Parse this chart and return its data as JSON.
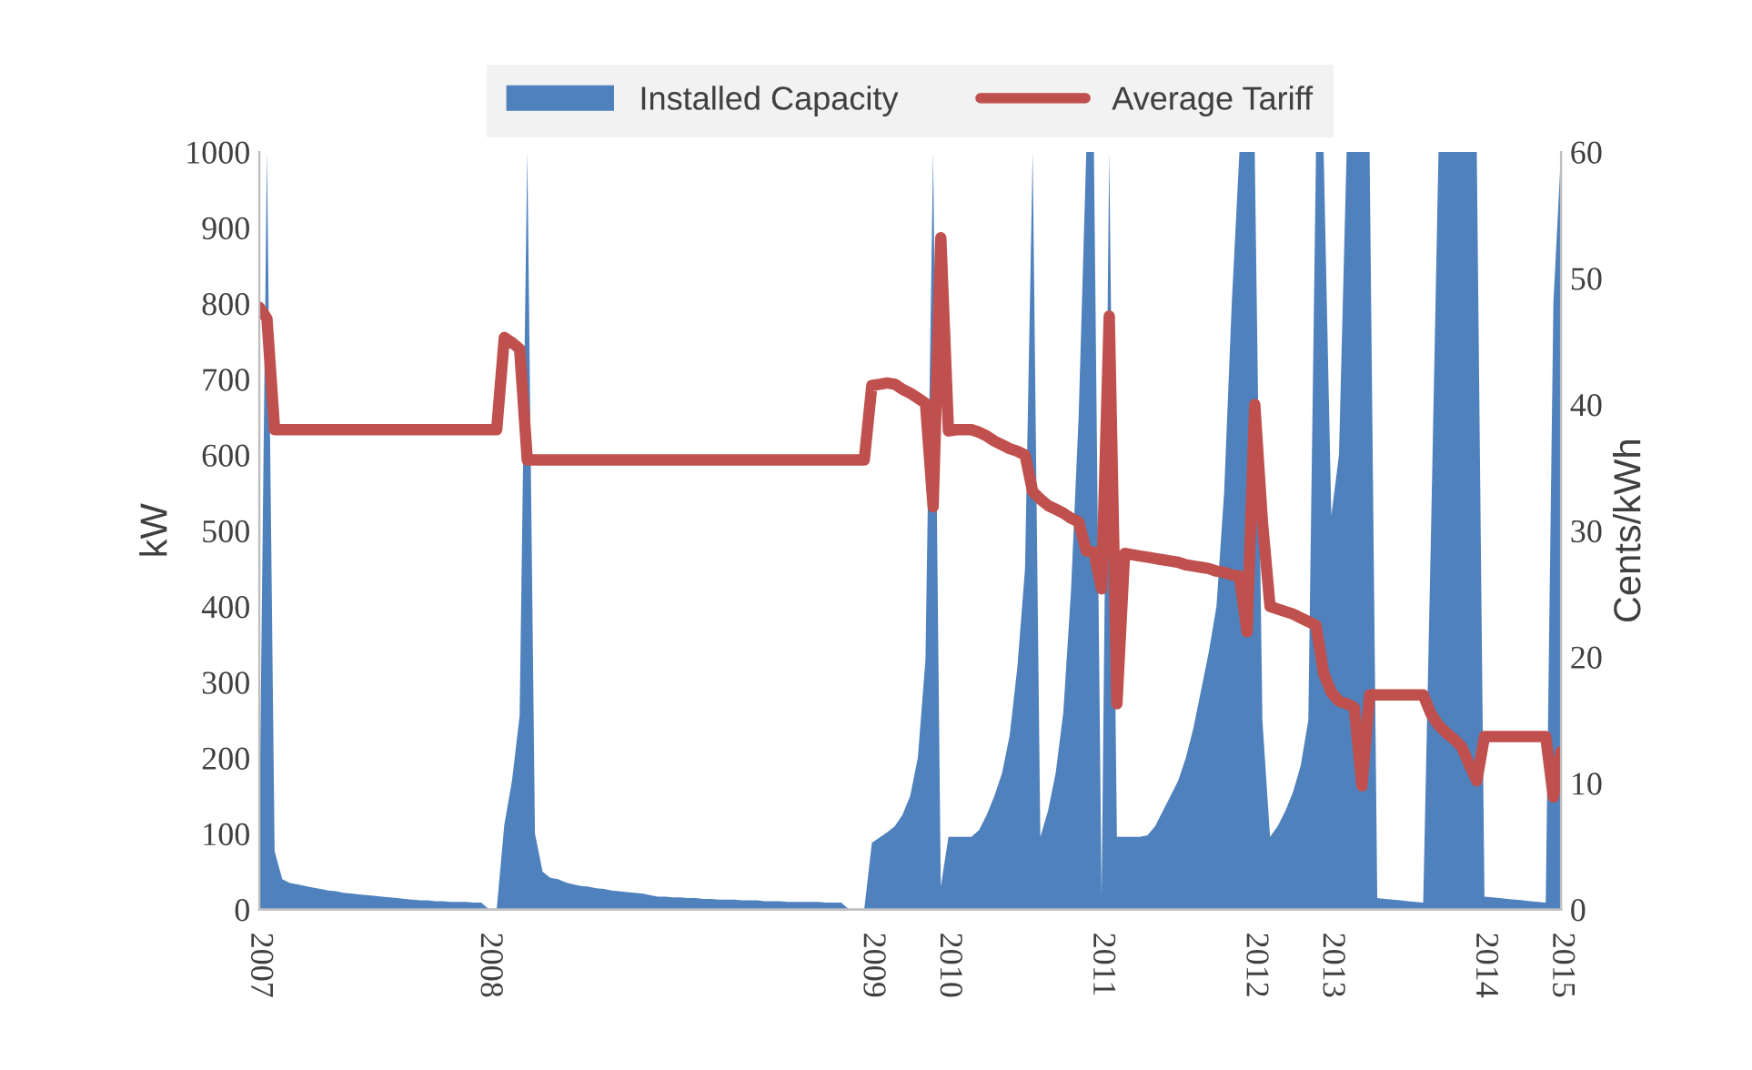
{
  "chart_data": {
    "type": "area",
    "ylabel": "kW",
    "y2label": "Cents/kWh",
    "categories": [
      "2007",
      null,
      null,
      null,
      null,
      null,
      null,
      null,
      null,
      null,
      null,
      null,
      null,
      null,
      null,
      null,
      null,
      null,
      null,
      null,
      null,
      null,
      null,
      null,
      null,
      null,
      null,
      null,
      null,
      null,
      "2008",
      null,
      null,
      null,
      null,
      null,
      null,
      null,
      null,
      null,
      null,
      null,
      null,
      null,
      null,
      null,
      null,
      null,
      null,
      null,
      null,
      null,
      null,
      null,
      null,
      null,
      null,
      null,
      null,
      null,
      null,
      null,
      null,
      null,
      null,
      null,
      null,
      null,
      null,
      null,
      null,
      null,
      null,
      null,
      null,
      null,
      null,
      null,
      null,
      null,
      "2009",
      null,
      null,
      null,
      null,
      null,
      null,
      null,
      null,
      null,
      "2010",
      null,
      null,
      null,
      null,
      null,
      null,
      null,
      null,
      null,
      null,
      null,
      null,
      null,
      null,
      null,
      null,
      null,
      null,
      null,
      "2011",
      null,
      null,
      null,
      null,
      null,
      null,
      null,
      null,
      null,
      null,
      null,
      null,
      null,
      null,
      null,
      null,
      null,
      null,
      null,
      "2012",
      null,
      null,
      null,
      null,
      null,
      null,
      null,
      null,
      null,
      "2013",
      null,
      null,
      null,
      null,
      null,
      null,
      null,
      null,
      null,
      null,
      null,
      null,
      null,
      null,
      null,
      null,
      null,
      null,
      null,
      "2014",
      null,
      null,
      null,
      null,
      null,
      null,
      null,
      null,
      null,
      "2015"
    ],
    "series": [
      {
        "name": "Installed Capacity",
        "color": "#4f81bd",
        "values": [
          100,
          1000,
          77,
          40,
          35,
          33,
          31,
          29,
          27,
          25,
          24,
          22,
          21,
          20,
          19,
          18,
          17,
          16,
          15,
          14,
          13,
          12,
          12,
          11,
          11,
          10,
          10,
          10,
          9,
          9,
          0,
          0,
          112,
          170,
          256,
          1000,
          100,
          50,
          42,
          40,
          36,
          33,
          31,
          30,
          28,
          27,
          25,
          24,
          23,
          22,
          21,
          19,
          17,
          17,
          16,
          16,
          15,
          15,
          14,
          14,
          13,
          13,
          13,
          12,
          12,
          12,
          11,
          11,
          11,
          10,
          10,
          10,
          10,
          10,
          9,
          9,
          9,
          0,
          0,
          0,
          88,
          95,
          102,
          110,
          125,
          150,
          200,
          330,
          1000,
          30,
          96,
          96,
          96,
          96,
          105,
          125,
          150,
          180,
          230,
          320,
          450,
          1000,
          96,
          130,
          180,
          260,
          420,
          650,
          1000,
          1000,
          17,
          1000,
          96,
          96,
          96,
          96,
          98,
          110,
          130,
          150,
          170,
          200,
          240,
          290,
          340,
          400,
          550,
          800,
          1000,
          1000,
          1000,
          250,
          96,
          110,
          130,
          155,
          190,
          250,
          1000,
          1000,
          520,
          600,
          1000,
          1000,
          1000,
          1000,
          15,
          14,
          13,
          12,
          11,
          10,
          9,
          488,
          1000,
          1000,
          1000,
          1000,
          1000,
          1000,
          17,
          16,
          15,
          14,
          13,
          12,
          11,
          10,
          9,
          800,
          1000
        ]
      },
      {
        "name": "Average Tariff",
        "type": "line",
        "axis": "y2",
        "color": "#c0504d",
        "values": [
          47.7,
          46.8,
          38.0,
          38.0,
          38.0,
          38.0,
          38.0,
          38.0,
          38.0,
          38.0,
          38.0,
          38.0,
          38.0,
          38.0,
          38.0,
          38.0,
          38.0,
          38.0,
          38.0,
          38.0,
          38.0,
          38.0,
          38.0,
          38.0,
          38.0,
          38.0,
          38.0,
          38.0,
          38.0,
          38.0,
          38.0,
          38.0,
          45.3,
          44.9,
          44.4,
          35.6,
          35.6,
          35.6,
          35.6,
          35.6,
          35.6,
          35.6,
          35.6,
          35.6,
          35.6,
          35.6,
          35.6,
          35.6,
          35.6,
          35.6,
          35.6,
          35.6,
          35.6,
          35.6,
          35.6,
          35.6,
          35.6,
          35.6,
          35.6,
          35.6,
          35.6,
          35.6,
          35.6,
          35.6,
          35.6,
          35.6,
          35.6,
          35.6,
          35.6,
          35.6,
          35.6,
          35.6,
          35.6,
          35.6,
          35.6,
          35.6,
          35.6,
          35.6,
          35.6,
          35.6,
          41.5,
          41.6,
          41.7,
          41.6,
          41.2,
          40.9,
          40.5,
          40.1,
          31.9,
          53.2,
          37.9,
          38.0,
          38.0,
          38.0,
          37.8,
          37.5,
          37.1,
          36.8,
          36.5,
          36.3,
          36.0,
          33.1,
          32.5,
          32.0,
          31.7,
          31.4,
          31.0,
          30.7,
          28.4,
          28.3,
          25.4,
          47.0,
          16.3,
          28.2,
          28.1,
          28.0,
          27.9,
          27.8,
          27.7,
          27.6,
          27.5,
          27.3,
          27.2,
          27.1,
          27.0,
          26.8,
          26.7,
          26.5,
          26.4,
          22.0,
          40.0,
          30.7,
          24.0,
          23.8,
          23.6,
          23.4,
          23.1,
          22.8,
          22.5,
          18.7,
          17.2,
          16.5,
          16.3,
          16.0,
          9.8,
          17.0,
          17.0,
          17.0,
          17.0,
          17.0,
          17.0,
          17.0,
          17.0,
          15.5,
          14.6,
          14.0,
          13.5,
          12.9,
          11.5,
          10.2,
          13.7,
          13.7,
          13.7,
          13.7,
          13.7,
          13.7,
          13.7,
          13.7,
          13.7,
          8.9,
          12.5
        ]
      }
    ],
    "ylim": [
      0,
      1000
    ],
    "yticks": [
      0,
      100,
      200,
      300,
      400,
      500,
      600,
      700,
      800,
      900,
      1000
    ],
    "y2lim": [
      0,
      60
    ],
    "y2ticks": [
      0,
      10,
      20,
      30,
      40,
      50,
      60
    ],
    "legend": "top",
    "grid": false
  }
}
